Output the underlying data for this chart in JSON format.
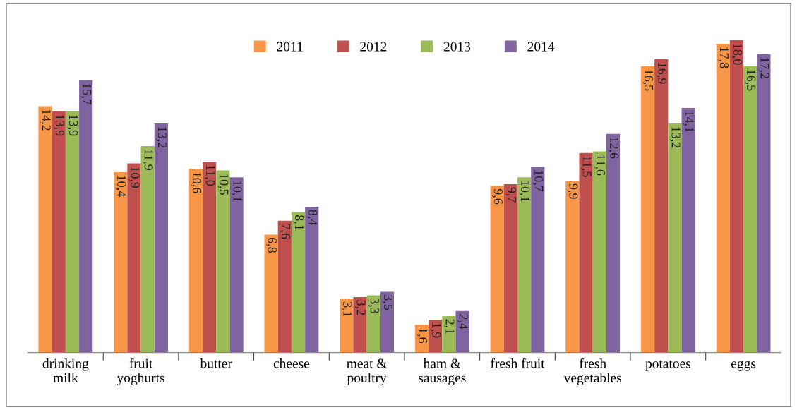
{
  "chart_data": {
    "type": "bar",
    "categories": [
      "drinking\nmilk",
      "fruit\nyoghurts",
      "butter",
      "cheese",
      "meat &\npoultry",
      "ham &\nsausages",
      "fresh fruit",
      "fresh\nvegetables",
      "potatoes",
      "eggs"
    ],
    "series": [
      {
        "name": "2011",
        "color": "#f79646",
        "values": [
          14.2,
          10.4,
          10.6,
          6.8,
          3.1,
          1.6,
          9.6,
          9.9,
          16.5,
          17.8
        ],
        "value_labels": [
          "14,2",
          "10,4",
          "10,6",
          "6,8",
          "3,1",
          "1,6",
          "9,6",
          "9,9",
          "16,5",
          "17,8"
        ]
      },
      {
        "name": "2012",
        "color": "#c0504d",
        "values": [
          13.9,
          10.9,
          11.0,
          7.6,
          3.2,
          1.9,
          9.7,
          11.5,
          16.9,
          18.0
        ],
        "value_labels": [
          "13,9",
          "10,9",
          "11,0",
          "7,6",
          "3,2",
          "1,9",
          "9,7",
          "11,5",
          "16,9",
          "18,0"
        ]
      },
      {
        "name": "2013",
        "color": "#9bbb59",
        "values": [
          13.9,
          11.9,
          10.5,
          8.1,
          3.3,
          2.1,
          10.1,
          11.6,
          13.2,
          16.5
        ],
        "value_labels": [
          "13,9",
          "11,9",
          "10,5",
          "8,1",
          "3,3",
          "2,1",
          "10,1",
          "11,6",
          "13,2",
          "16,5"
        ]
      },
      {
        "name": "2014",
        "color": "#8064a2",
        "values": [
          15.7,
          13.2,
          10.1,
          8.4,
          3.5,
          2.4,
          10.7,
          12.6,
          14.1,
          17.2
        ],
        "value_labels": [
          "15,7",
          "13,2",
          "10,1",
          "8,4",
          "3,5",
          "2,4",
          "10,7",
          "12,6",
          "14,1",
          "17,2"
        ]
      }
    ],
    "legend": "top",
    "tick_labels": "x"
  }
}
